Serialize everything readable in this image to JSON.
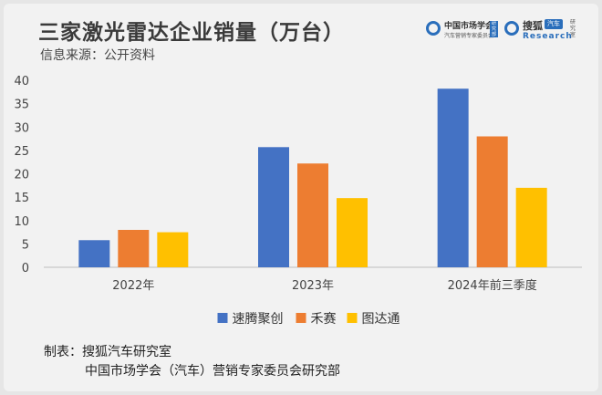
{
  "header": {
    "title": "三家激光雷达企业销量（万台）",
    "subtitle": "信息来源：公开资料"
  },
  "logos": {
    "left_name": "中国市场学会",
    "left_sub": "汽车营销专家委员会",
    "left_stamp": "研究部",
    "right_name": "搜狐",
    "right_pill": "汽车",
    "right_sub": "Research",
    "right_side": "研究室"
  },
  "chart_data": {
    "type": "bar",
    "title": "三家激光雷达企业销量（万台）",
    "categories": [
      "2022年",
      "2023年",
      "2024年前三季度"
    ],
    "series": [
      {
        "name": "速腾聚创",
        "values": [
          5.8,
          25.7,
          38.2
        ],
        "color": "#4472c4"
      },
      {
        "name": "禾赛",
        "values": [
          8.0,
          22.2,
          28.0
        ],
        "color": "#ed7d31"
      },
      {
        "name": "图达通",
        "values": [
          7.5,
          14.8,
          17.0
        ],
        "color": "#ffc000"
      }
    ],
    "ylim": [
      0,
      40
    ],
    "yticks": [
      0,
      5,
      10,
      15,
      20,
      25,
      30,
      35,
      40
    ],
    "grid": false,
    "legend": "bottom"
  },
  "footer": {
    "line1": "制表：搜狐汽车研究室",
    "line2": "中国市场学会（汽车）营销专家委员会研究部"
  }
}
